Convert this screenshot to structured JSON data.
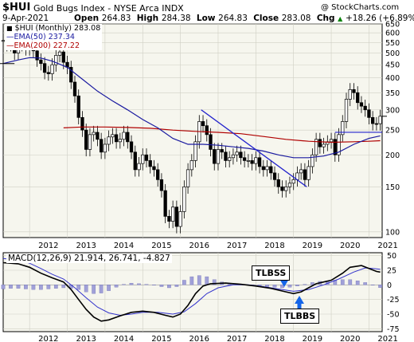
{
  "header": {
    "symbol": "$HUI",
    "name": "Gold Bugs Index - NYSE Arca  INDX",
    "copyright": "@ StockCharts.com",
    "date": "9-Apr-2021",
    "open_label": "Open",
    "open": "264.83",
    "high_label": "High",
    "high": "284.38",
    "low_label": "Low",
    "low": "264.83",
    "close_label": "Close",
    "close": "283.08",
    "chg_label": "Chg",
    "chg": "+18.26 (+6.89%)",
    "chg_icon": "up-arrow-icon"
  },
  "legend": {
    "price": "$HUI (Monthly) 283.08",
    "ema50": "EMA(50) 237.34",
    "ema200": "EMA(200) 227.22"
  },
  "colors": {
    "ema50": "#1a1aa0",
    "ema200": "#b00000",
    "macd_line": "#000000",
    "signal_line": "#3333cc",
    "histogram": "#a0a0d8",
    "trendline": "#2222cc",
    "panel_bg": "#f6f6ee"
  },
  "callouts": {
    "tlbss": "TLBSS",
    "tlbbs": "TLBBS"
  },
  "chart_data": [
    {
      "type": "candlestick",
      "scale": "log",
      "ylim": [
        95,
        650
      ],
      "yticks": [
        650,
        600,
        550,
        500,
        450,
        400,
        350,
        300,
        250,
        200,
        150,
        100
      ],
      "xticks": [
        "2012",
        "2013",
        "2014",
        "2015",
        "2016",
        "2017",
        "2018",
        "2019",
        "2020",
        "2021"
      ],
      "xrange": [
        2011.3,
        2021.35
      ],
      "grid": true,
      "legend_position": "top-left",
      "last_close": 283.08,
      "close": [
        [
          2011.3,
          560
        ],
        [
          2011.4,
          540
        ],
        [
          2011.5,
          545
        ],
        [
          2011.6,
          500
        ],
        [
          2011.7,
          555
        ],
        [
          2011.8,
          540
        ],
        [
          2011.9,
          520
        ],
        [
          2012.0,
          535
        ],
        [
          2012.1,
          510
        ],
        [
          2012.2,
          470
        ],
        [
          2012.3,
          455
        ],
        [
          2012.4,
          420
        ],
        [
          2012.5,
          415
        ],
        [
          2012.6,
          450
        ],
        [
          2012.7,
          490
        ],
        [
          2012.8,
          505
        ],
        [
          2012.9,
          460
        ],
        [
          2013.0,
          440
        ],
        [
          2013.1,
          385
        ],
        [
          2013.2,
          340
        ],
        [
          2013.3,
          280
        ],
        [
          2013.4,
          250
        ],
        [
          2013.5,
          210
        ],
        [
          2013.6,
          240
        ],
        [
          2013.7,
          245
        ],
        [
          2013.8,
          230
        ],
        [
          2013.9,
          205
        ],
        [
          2014.0,
          220
        ],
        [
          2014.1,
          235
        ],
        [
          2014.2,
          240
        ],
        [
          2014.3,
          225
        ],
        [
          2014.4,
          230
        ],
        [
          2014.5,
          245
        ],
        [
          2014.6,
          225
        ],
        [
          2014.7,
          205
        ],
        [
          2014.8,
          175
        ],
        [
          2014.9,
          185
        ],
        [
          2015.0,
          200
        ],
        [
          2015.1,
          190
        ],
        [
          2015.2,
          180
        ],
        [
          2015.3,
          175
        ],
        [
          2015.4,
          160
        ],
        [
          2015.5,
          145
        ],
        [
          2015.6,
          115
        ],
        [
          2015.7,
          110
        ],
        [
          2015.8,
          125
        ],
        [
          2015.9,
          105
        ],
        [
          2016.0,
          120
        ],
        [
          2016.1,
          150
        ],
        [
          2016.2,
          175
        ],
        [
          2016.3,
          190
        ],
        [
          2016.4,
          225
        ],
        [
          2016.5,
          270
        ],
        [
          2016.6,
          260
        ],
        [
          2016.7,
          240
        ],
        [
          2016.8,
          210
        ],
        [
          2016.9,
          185
        ],
        [
          2017.0,
          210
        ],
        [
          2017.1,
          205
        ],
        [
          2017.2,
          190
        ],
        [
          2017.3,
          195
        ],
        [
          2017.4,
          200
        ],
        [
          2017.5,
          205
        ],
        [
          2017.6,
          195
        ],
        [
          2017.7,
          190
        ],
        [
          2017.8,
          190
        ],
        [
          2017.9,
          185
        ],
        [
          2018.0,
          195
        ],
        [
          2018.1,
          180
        ],
        [
          2018.2,
          175
        ],
        [
          2018.3,
          180
        ],
        [
          2018.4,
          170
        ],
        [
          2018.5,
          160
        ],
        [
          2018.6,
          150
        ],
        [
          2018.7,
          145
        ],
        [
          2018.8,
          150
        ],
        [
          2018.9,
          155
        ],
        [
          2019.0,
          160
        ],
        [
          2019.1,
          170
        ],
        [
          2019.2,
          175
        ],
        [
          2019.3,
          160
        ],
        [
          2019.4,
          180
        ],
        [
          2019.5,
          200
        ],
        [
          2019.6,
          230
        ],
        [
          2019.7,
          215
        ],
        [
          2019.8,
          220
        ],
        [
          2019.9,
          225
        ],
        [
          2020.0,
          230
        ],
        [
          2020.1,
          200
        ],
        [
          2020.2,
          240
        ],
        [
          2020.3,
          270
        ],
        [
          2020.4,
          330
        ],
        [
          2020.5,
          360
        ],
        [
          2020.6,
          350
        ],
        [
          2020.7,
          320
        ],
        [
          2020.8,
          310
        ],
        [
          2020.9,
          300
        ],
        [
          2021.0,
          280
        ],
        [
          2021.1,
          265
        ],
        [
          2021.2,
          264.83
        ],
        [
          2021.3,
          283.08
        ]
      ],
      "ema50": [
        [
          2011.3,
          455
        ],
        [
          2011.7,
          470
        ],
        [
          2012.0,
          480
        ],
        [
          2012.3,
          478
        ],
        [
          2012.6,
          465
        ],
        [
          2013.0,
          440
        ],
        [
          2013.4,
          395
        ],
        [
          2013.8,
          355
        ],
        [
          2014.2,
          325
        ],
        [
          2014.6,
          300
        ],
        [
          2015.0,
          275
        ],
        [
          2015.4,
          255
        ],
        [
          2015.8,
          232
        ],
        [
          2016.2,
          220
        ],
        [
          2016.6,
          220
        ],
        [
          2017.0,
          218
        ],
        [
          2017.4,
          215
        ],
        [
          2017.8,
          212
        ],
        [
          2018.2,
          207
        ],
        [
          2018.6,
          200
        ],
        [
          2019.0,
          195
        ],
        [
          2019.4,
          195
        ],
        [
          2019.8,
          198
        ],
        [
          2020.2,
          205
        ],
        [
          2020.6,
          220
        ],
        [
          2021.0,
          232
        ],
        [
          2021.3,
          237.34
        ]
      ],
      "ema200": [
        [
          2012.9,
          255
        ],
        [
          2013.4,
          257
        ],
        [
          2014.0,
          257
        ],
        [
          2014.6,
          256
        ],
        [
          2015.2,
          254
        ],
        [
          2015.8,
          250
        ],
        [
          2016.4,
          247
        ],
        [
          2017.0,
          245
        ],
        [
          2017.6,
          242
        ],
        [
          2018.2,
          236
        ],
        [
          2018.8,
          230
        ],
        [
          2019.4,
          226
        ],
        [
          2020.0,
          224
        ],
        [
          2020.6,
          225
        ],
        [
          2021.0,
          226
        ],
        [
          2021.3,
          227.22
        ]
      ]
    },
    {
      "type": "line",
      "title": "MACD(12,26,9) 21.914, 26.741, -4.827",
      "series_names": [
        "MACD",
        "Signal",
        "Histogram"
      ],
      "ylim": [
        -80,
        55
      ],
      "yticks": [
        50,
        25,
        0,
        -25,
        -50,
        -75
      ],
      "xticks": [
        "2012",
        "2013",
        "2014",
        "2015",
        "2016",
        "2017",
        "2018",
        "2019",
        "2020",
        "2021"
      ],
      "xrange": [
        2011.3,
        2021.35
      ],
      "macd": [
        [
          2011.3,
          38
        ],
        [
          2011.7,
          36
        ],
        [
          2012.0,
          30
        ],
        [
          2012.3,
          20
        ],
        [
          2012.6,
          12
        ],
        [
          2012.9,
          5
        ],
        [
          2013.1,
          -8
        ],
        [
          2013.3,
          -25
        ],
        [
          2013.5,
          -42
        ],
        [
          2013.7,
          -55
        ],
        [
          2013.9,
          -62
        ],
        [
          2014.1,
          -60
        ],
        [
          2014.4,
          -53
        ],
        [
          2014.7,
          -47
        ],
        [
          2015.0,
          -45
        ],
        [
          2015.3,
          -47
        ],
        [
          2015.6,
          -52
        ],
        [
          2015.8,
          -55
        ],
        [
          2016.0,
          -50
        ],
        [
          2016.2,
          -35
        ],
        [
          2016.4,
          -15
        ],
        [
          2016.6,
          -2
        ],
        [
          2016.8,
          2
        ],
        [
          2017.2,
          3
        ],
        [
          2017.6,
          1
        ],
        [
          2018.0,
          -2
        ],
        [
          2018.4,
          -6
        ],
        [
          2018.8,
          -12
        ],
        [
          2019.0,
          -15
        ],
        [
          2019.2,
          -12
        ],
        [
          2019.4,
          -5
        ],
        [
          2019.6,
          2
        ],
        [
          2019.8,
          5
        ],
        [
          2020.0,
          8
        ],
        [
          2020.3,
          20
        ],
        [
          2020.5,
          30
        ],
        [
          2020.8,
          33
        ],
        [
          2021.0,
          28
        ],
        [
          2021.2,
          23
        ],
        [
          2021.3,
          21.914
        ]
      ],
      "signal": [
        [
          2011.3,
          45
        ],
        [
          2011.7,
          42
        ],
        [
          2012.0,
          37
        ],
        [
          2012.3,
          28
        ],
        [
          2012.6,
          18
        ],
        [
          2012.9,
          10
        ],
        [
          2013.2,
          -5
        ],
        [
          2013.5,
          -22
        ],
        [
          2013.8,
          -38
        ],
        [
          2014.1,
          -48
        ],
        [
          2014.4,
          -52
        ],
        [
          2014.7,
          -50
        ],
        [
          2015.0,
          -47
        ],
        [
          2015.4,
          -47
        ],
        [
          2015.8,
          -50
        ],
        [
          2016.1,
          -46
        ],
        [
          2016.4,
          -32
        ],
        [
          2016.7,
          -15
        ],
        [
          2017.0,
          -5
        ],
        [
          2017.4,
          0
        ],
        [
          2017.8,
          0
        ],
        [
          2018.2,
          -3
        ],
        [
          2018.6,
          -7
        ],
        [
          2019.0,
          -11
        ],
        [
          2019.4,
          -8
        ],
        [
          2019.8,
          0
        ],
        [
          2020.2,
          10
        ],
        [
          2020.6,
          22
        ],
        [
          2020.9,
          29
        ],
        [
          2021.1,
          28
        ],
        [
          2021.3,
          26.741
        ]
      ],
      "histogram": [
        [
          2011.3,
          -7
        ],
        [
          2011.5,
          -6
        ],
        [
          2011.7,
          -6
        ],
        [
          2011.9,
          -7
        ],
        [
          2012.1,
          -8
        ],
        [
          2012.3,
          -8
        ],
        [
          2012.5,
          -7
        ],
        [
          2012.7,
          -6
        ],
        [
          2012.9,
          -5
        ],
        [
          2013.1,
          -6
        ],
        [
          2013.3,
          -8
        ],
        [
          2013.5,
          -12
        ],
        [
          2013.7,
          -15
        ],
        [
          2013.9,
          -14
        ],
        [
          2014.1,
          -10
        ],
        [
          2014.3,
          -4
        ],
        [
          2014.5,
          1
        ],
        [
          2014.7,
          3
        ],
        [
          2014.9,
          2
        ],
        [
          2015.1,
          1
        ],
        [
          2015.3,
          0
        ],
        [
          2015.5,
          -3
        ],
        [
          2015.7,
          -5
        ],
        [
          2015.9,
          -3
        ],
        [
          2016.1,
          8
        ],
        [
          2016.3,
          14
        ],
        [
          2016.5,
          16
        ],
        [
          2016.7,
          14
        ],
        [
          2016.9,
          9
        ],
        [
          2017.1,
          5
        ],
        [
          2017.3,
          3
        ],
        [
          2017.5,
          2
        ],
        [
          2017.7,
          1
        ],
        [
          2017.9,
          -1
        ],
        [
          2018.1,
          -2
        ],
        [
          2018.3,
          -3
        ],
        [
          2018.5,
          -4
        ],
        [
          2018.7,
          -5
        ],
        [
          2018.9,
          -4
        ],
        [
          2019.1,
          -2
        ],
        [
          2019.3,
          1
        ],
        [
          2019.5,
          4
        ],
        [
          2019.7,
          6
        ],
        [
          2019.9,
          7
        ],
        [
          2020.1,
          8
        ],
        [
          2020.3,
          9
        ],
        [
          2020.5,
          9
        ],
        [
          2020.7,
          7
        ],
        [
          2020.9,
          4
        ],
        [
          2021.1,
          0
        ],
        [
          2021.3,
          -4.827
        ]
      ]
    }
  ]
}
